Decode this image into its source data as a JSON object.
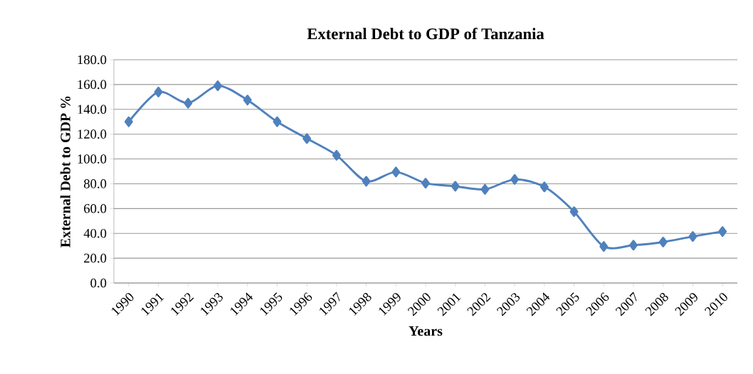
{
  "chart_data": {
    "type": "line",
    "title": "External Debt to GDP of Tanzania",
    "xlabel": "Years",
    "ylabel": "External Debt to GDP %",
    "categories": [
      "1990",
      "1991",
      "1992",
      "1993",
      "1994",
      "1995",
      "1996",
      "1997",
      "1998",
      "1999",
      "2000",
      "2001",
      "2002",
      "2003",
      "2004",
      "2005",
      "2006",
      "2007",
      "2008",
      "2009",
      "2010"
    ],
    "series": [
      {
        "color": "#4f81bd",
        "values": [
          130,
          154,
          145,
          159,
          147.5,
          130,
          116.5,
          103,
          82,
          89.5,
          80.5,
          78,
          75.5,
          83.5,
          77.5,
          57.5,
          29.5,
          30.5,
          33,
          37.5,
          41.5
        ]
      }
    ],
    "ylim": [
      0,
      180
    ],
    "yticks": [
      {
        "value": 0,
        "label": "0.0"
      },
      {
        "value": 20,
        "label": "20.0"
      },
      {
        "value": 40,
        "label": "40.0"
      },
      {
        "value": 60,
        "label": "60.0"
      },
      {
        "value": 80,
        "label": "80.0"
      },
      {
        "value": 100,
        "label": "100.0"
      },
      {
        "value": 120,
        "label": "120.0"
      },
      {
        "value": 140,
        "label": "140.0"
      },
      {
        "value": 160,
        "label": "160.0"
      },
      {
        "value": 180,
        "label": "180.0"
      }
    ],
    "grid": "y",
    "marker": "diamond",
    "line_style": "solid"
  }
}
